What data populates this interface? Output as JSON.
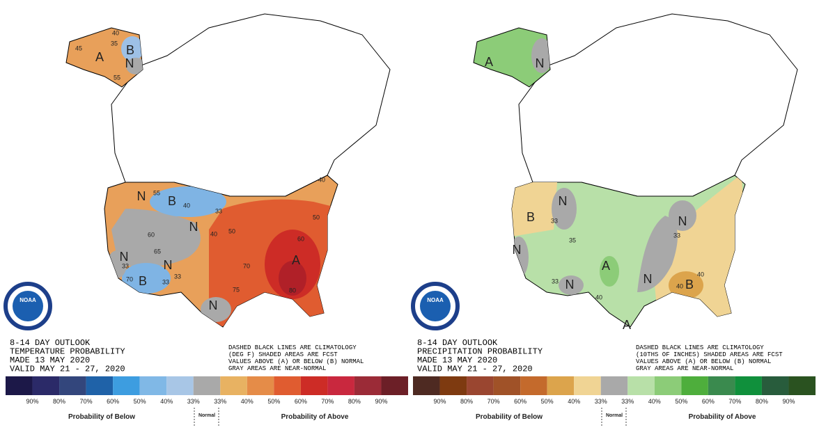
{
  "panels": [
    {
      "title_lines": [
        "8-14 DAY OUTLOOK",
        "TEMPERATURE PROBABILITY",
        "MADE  13 MAY 2020",
        "VALID  MAY 21 - 27, 2020"
      ],
      "note_lines": [
        "DASHED BLACK LINES ARE CLIMATOLOGY",
        "(DEG F) SHADED AREAS ARE FCST",
        "VALUES ABOVE (A) OR BELOW (B) NORMAL",
        "GRAY AREAS ARE NEAR-NORMAL"
      ],
      "logo": "NOAA",
      "map_labels": [
        "A",
        "B",
        "N",
        "40",
        "45",
        "35",
        "55",
        "N",
        "B",
        "55",
        "40",
        "33",
        "N",
        "40",
        "50",
        "60",
        "65",
        "N",
        "33",
        "N",
        "B",
        "70",
        "33",
        "33",
        "50",
        "60",
        "A",
        "70",
        "75",
        "80",
        "N",
        "40"
      ],
      "legend": {
        "colors": [
          "#1c1848",
          "#2b2a68",
          "#33467c",
          "#1f62a8",
          "#3d9de0",
          "#80b8e6",
          "#a8c6e6",
          "#a9a9a9",
          "#e8b262",
          "#e58c48",
          "#e05c30",
          "#cd2c26",
          "#c9283e",
          "#9b2b37",
          "#6c1f27"
        ],
        "labels": [
          "90%",
          "80%",
          "70%",
          "60%",
          "50%",
          "40%",
          "33%",
          "33%",
          "40%",
          "50%",
          "60%",
          "70%",
          "80%",
          "90%"
        ],
        "below": "Probability of Below",
        "normal": "Normal",
        "above": "Probability of Above"
      }
    },
    {
      "title_lines": [
        "8-14 DAY OUTLOOK",
        "PRECIPITATION PROBABILITY",
        "MADE  13 MAY 2020",
        "VALID  MAY 21 - 27, 2020"
      ],
      "note_lines": [
        "DASHED BLACK LINES ARE CLIMATOLOGY",
        "(10THS OF INCHES) SHADED AREAS ARE FCST",
        "VALUES ABOVE (A) OR BELOW (B) NORMAL",
        "GRAY AREAS ARE NEAR-NORMAL"
      ],
      "logo": "NOAA",
      "map_labels": [
        "A",
        "N",
        "B",
        "N",
        "33",
        "35",
        "N",
        "33",
        "N",
        "A",
        "40",
        "A",
        "N",
        "N",
        "33",
        "B",
        "40",
        "40"
      ],
      "legend": {
        "colors": [
          "#4e2a22",
          "#7e3a10",
          "#9a4630",
          "#a05228",
          "#c46a2c",
          "#dca44c",
          "#f0d494",
          "#a9a9a9",
          "#b8e0a8",
          "#8ccc78",
          "#4eae3c",
          "#3a8a4e",
          "#10903c",
          "#285c3c",
          "#2a5220"
        ],
        "labels": [
          "90%",
          "80%",
          "70%",
          "60%",
          "50%",
          "40%",
          "33%",
          "33%",
          "40%",
          "50%",
          "60%",
          "70%",
          "80%",
          "90%"
        ],
        "below": "Probability of Below",
        "normal": "Normal",
        "above": "Probability of Above"
      }
    }
  ]
}
